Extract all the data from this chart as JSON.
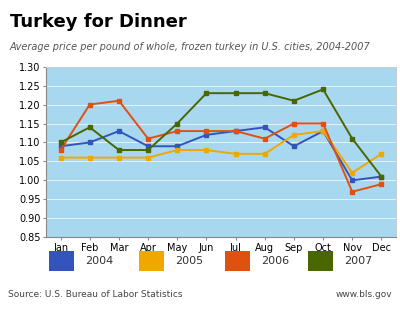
{
  "title": "Turkey for Dinner",
  "subtitle": "Average price per pound of whole, frozen turkey in U.S. cities, 2004-2007",
  "source": "Source: U.S. Bureau of Labor Statistics",
  "website": "www.bls.gov",
  "months": [
    "Jan",
    "Feb",
    "Mar",
    "Apr",
    "May",
    "Jun",
    "Jul",
    "Aug",
    "Sep",
    "Oct",
    "Nov",
    "Dec"
  ],
  "data_2004": [
    1.09,
    1.1,
    1.13,
    1.09,
    1.09,
    1.12,
    1.13,
    1.14,
    1.09,
    1.13,
    1.0,
    1.01
  ],
  "data_2005": [
    1.06,
    1.06,
    1.06,
    1.06,
    1.08,
    1.08,
    1.07,
    1.07,
    1.12,
    1.13,
    1.02,
    1.07
  ],
  "data_2006": [
    1.08,
    1.2,
    1.21,
    1.11,
    1.13,
    1.13,
    1.13,
    1.11,
    1.15,
    1.15,
    0.97,
    0.99
  ],
  "data_2007": [
    1.1,
    1.14,
    1.08,
    1.08,
    1.15,
    1.23,
    1.23,
    1.23,
    1.21,
    1.24,
    1.11,
    1.01
  ],
  "color_2004": "#3355bb",
  "color_2005": "#f0a800",
  "color_2006": "#e05010",
  "color_2007": "#4a6600",
  "ylim_min": 0.85,
  "ylim_max": 1.3,
  "bg_sky_color": "#a8d8f0",
  "title_fontsize": 13,
  "subtitle_fontsize": 7,
  "source_fontsize": 6.5,
  "tick_fontsize": 7,
  "legend_fontsize": 8,
  "topbar_color": "#2255aa",
  "bottombar_color": "#2255aa"
}
